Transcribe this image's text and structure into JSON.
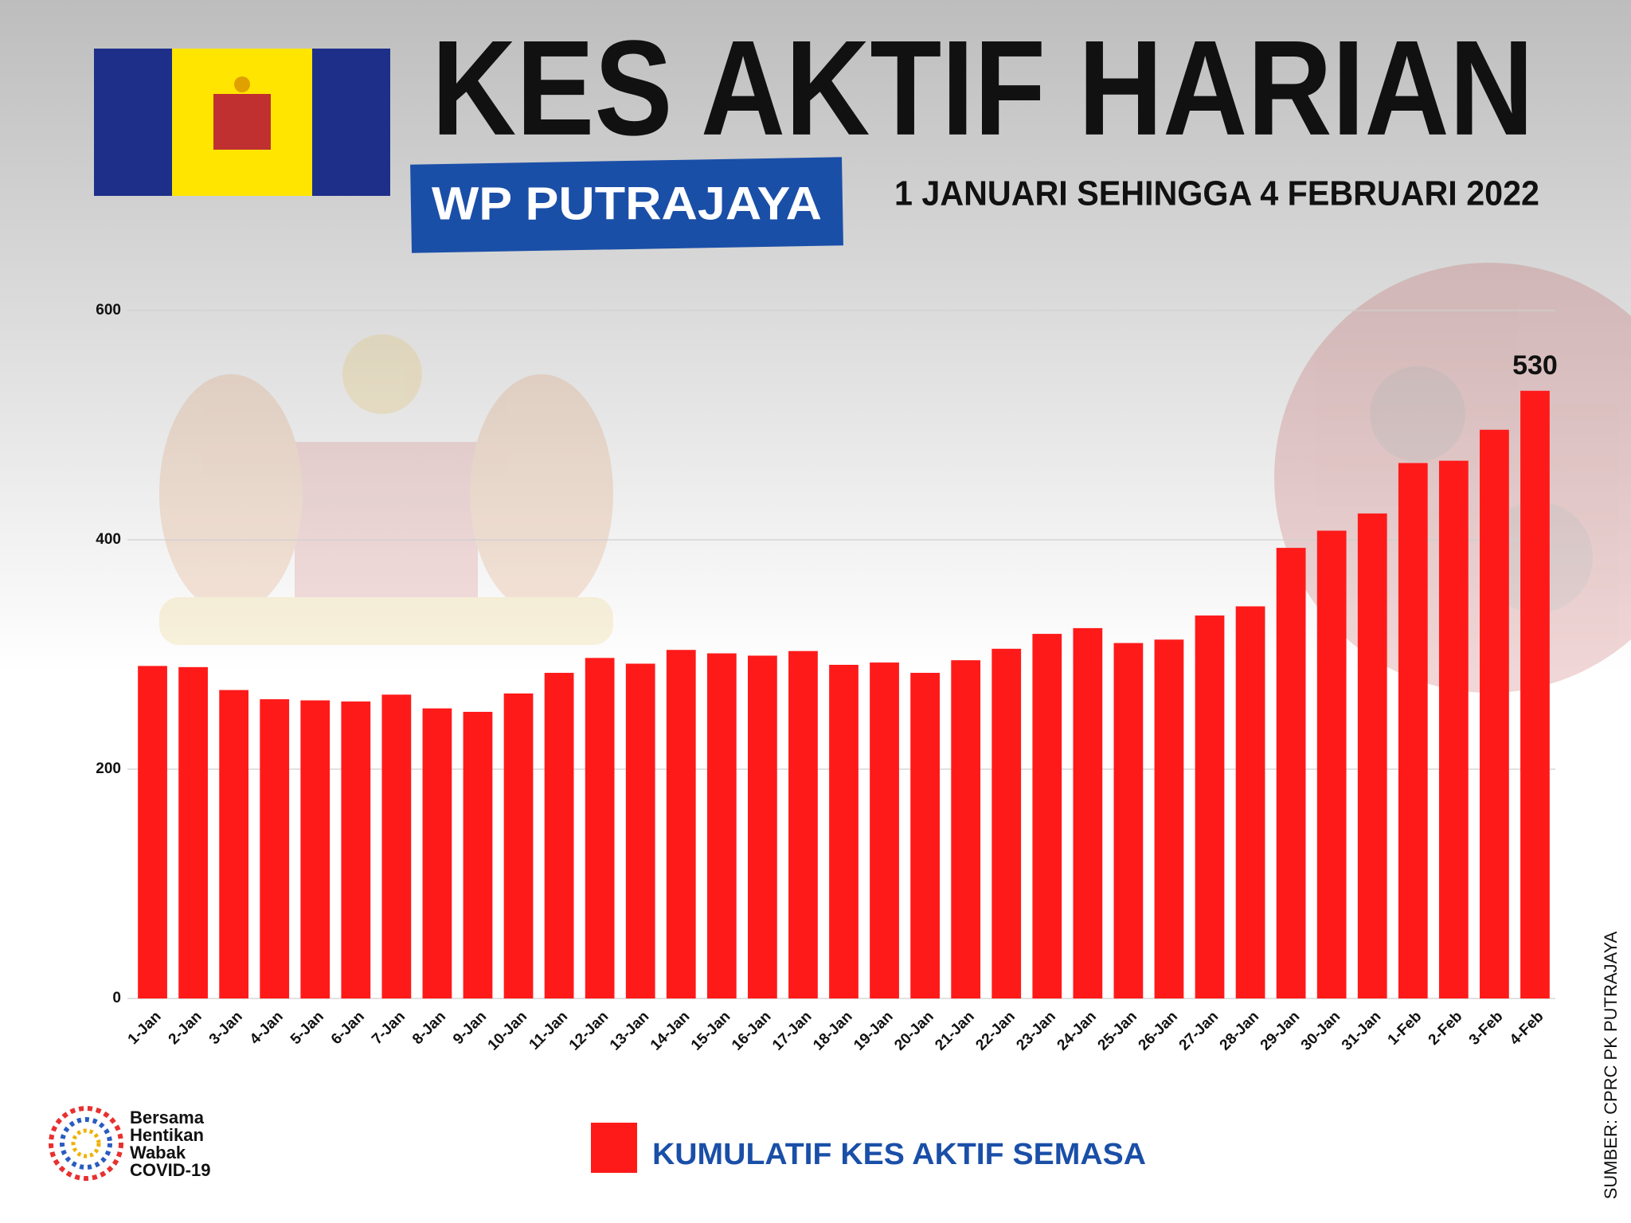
{
  "header": {
    "title": "KES AKTIF HARIAN",
    "region": "WP PUTRAJAYA",
    "period": "1 JANUARI SEHINGGA 4 FEBRUARI 2022"
  },
  "chart_data": {
    "type": "bar",
    "color": "#ff1a1a",
    "categories": [
      "1-Jan",
      "2-Jan",
      "3-Jan",
      "4-Jan",
      "5-Jan",
      "6-Jan",
      "7-Jan",
      "8-Jan",
      "9-Jan",
      "10-Jan",
      "11-Jan",
      "12-Jan",
      "13-Jan",
      "14-Jan",
      "15-Jan",
      "16-Jan",
      "17-Jan",
      "18-Jan",
      "19-Jan",
      "20-Jan",
      "21-Jan",
      "22-Jan",
      "23-Jan",
      "24-Jan",
      "25-Jan",
      "26-Jan",
      "27-Jan",
      "28-Jan",
      "29-Jan",
      "30-Jan",
      "31-Jan",
      "1-Feb",
      "2-Feb",
      "3-Feb",
      "4-Feb"
    ],
    "values": [
      290,
      289,
      269,
      261,
      260,
      259,
      265,
      253,
      250,
      266,
      284,
      297,
      292,
      304,
      301,
      299,
      303,
      291,
      293,
      284,
      295,
      305,
      318,
      323,
      310,
      313,
      334,
      342,
      393,
      408,
      423,
      467,
      469,
      496,
      530
    ],
    "ylim": [
      0,
      600
    ],
    "yticks": [
      0,
      200,
      400,
      600
    ],
    "grid": true,
    "data_label": "last",
    "legend": "KUMULATIF KES AKTIF SEMASA"
  },
  "source": "SUMBER: CPRC PK PUTRAJAYA",
  "logo": [
    "Bersama",
    "Hentikan",
    "Wabak",
    "COVID-19"
  ]
}
